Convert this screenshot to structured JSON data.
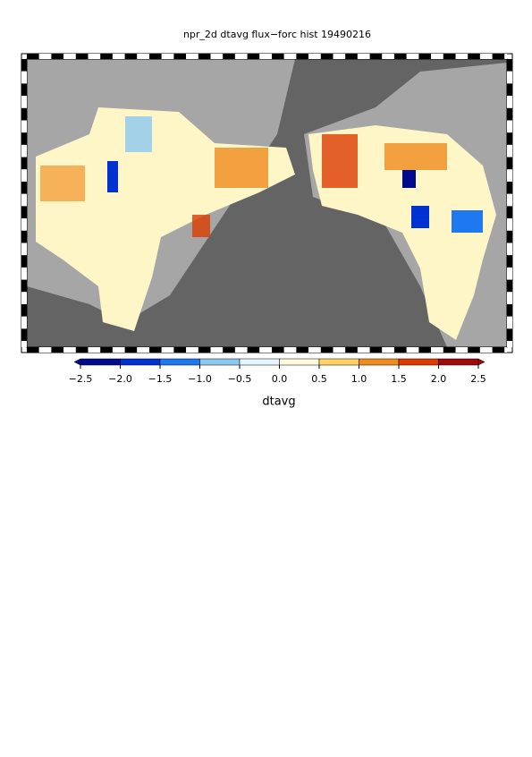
{
  "title": "npr_2d dtavg flux−forc hist 19490216",
  "colorbar": {
    "label": "dtavg",
    "colors": [
      "#000a8c",
      "#0032d2",
      "#1e78f0",
      "#8cc8f0",
      "#e6f5ff",
      "#fffadc",
      "#ffd264",
      "#f08c1e",
      "#dc3c00",
      "#a00a0a"
    ],
    "ticks": [
      {
        "value": -2.5,
        "label": "−2.5"
      },
      {
        "value": -2,
        "label": "−2.0"
      },
      {
        "value": -1.5,
        "label": "−1.5"
      },
      {
        "value": -1,
        "label": "−1.0"
      },
      {
        "value": -0.5,
        "label": "−0.5"
      },
      {
        "value": 0,
        "label": "0.0"
      },
      0.5,
      {
        "value": 1,
        "label": "1.0"
      },
      1.5,
      {
        "value": 2,
        "label": "2.0"
      },
      2.5
    ]
  }
}
